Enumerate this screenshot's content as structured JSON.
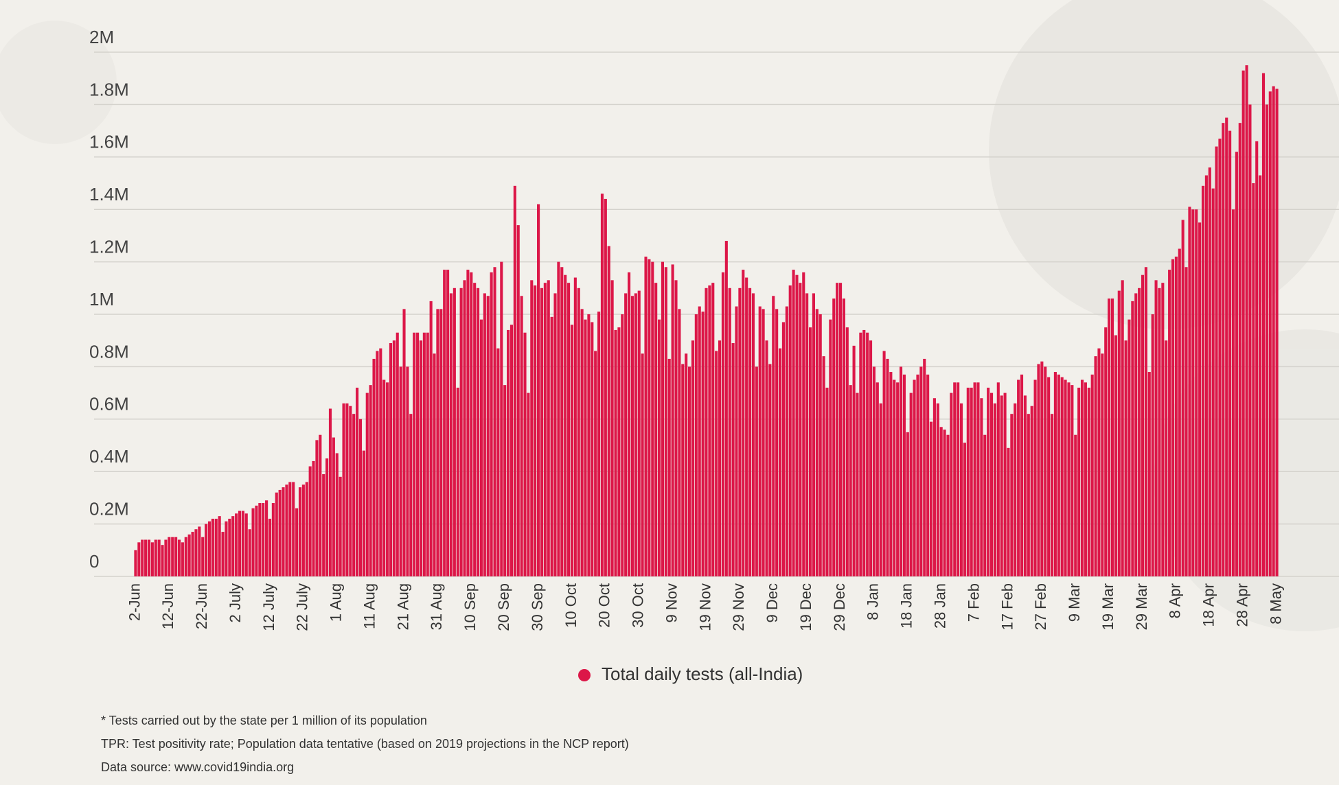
{
  "chart_data": {
    "type": "bar",
    "categories": [
      "2-Jun",
      null,
      null,
      null,
      null,
      null,
      null,
      null,
      null,
      null,
      "12-Jun",
      null,
      null,
      null,
      null,
      null,
      null,
      null,
      null,
      null,
      "22-Jun",
      null,
      null,
      null,
      null,
      null,
      null,
      null,
      null,
      null,
      "2 July",
      null,
      null,
      null,
      null,
      null,
      null,
      null,
      null,
      null,
      "12 July",
      null,
      null,
      null,
      null,
      null,
      null,
      null,
      null,
      null,
      "22 July",
      null,
      null,
      null,
      null,
      null,
      null,
      null,
      null,
      null,
      "1 Aug",
      null,
      null,
      null,
      null,
      null,
      null,
      null,
      null,
      null,
      "11 Aug",
      null,
      null,
      null,
      null,
      null,
      null,
      null,
      null,
      null,
      "21 Aug",
      null,
      null,
      null,
      null,
      null,
      null,
      null,
      null,
      null,
      "31 Aug",
      null,
      null,
      null,
      null,
      null,
      null,
      null,
      null,
      null,
      "10 Sep",
      null,
      null,
      null,
      null,
      null,
      null,
      null,
      null,
      null,
      "20 Sep",
      null,
      null,
      null,
      null,
      null,
      null,
      null,
      null,
      null,
      "30 Sep",
      null,
      null,
      null,
      null,
      null,
      null,
      null,
      null,
      null,
      "10 Oct",
      null,
      null,
      null,
      null,
      null,
      null,
      null,
      null,
      null,
      "20 Oct",
      null,
      null,
      null,
      null,
      null,
      null,
      null,
      null,
      null,
      "30 Oct",
      null,
      null,
      null,
      null,
      null,
      null,
      null,
      null,
      null,
      "9 Nov",
      null,
      null,
      null,
      null,
      null,
      null,
      null,
      null,
      null,
      "19 Nov",
      null,
      null,
      null,
      null,
      null,
      null,
      null,
      null,
      null,
      "29 Nov",
      null,
      null,
      null,
      null,
      null,
      null,
      null,
      null,
      null,
      "9 Dec",
      null,
      null,
      null,
      null,
      null,
      null,
      null,
      null,
      null,
      "19 Dec",
      null,
      null,
      null,
      null,
      null,
      null,
      null,
      null,
      null,
      "29 Dec",
      null,
      null,
      null,
      null,
      null,
      null,
      null,
      null,
      null,
      "8 Jan",
      null,
      null,
      null,
      null,
      null,
      null,
      null,
      null,
      null,
      "18 Jan",
      null,
      null,
      null,
      null,
      null,
      null,
      null,
      null,
      null,
      "28 Jan",
      null,
      null,
      null,
      null,
      null,
      null,
      null,
      null,
      null,
      "7 Feb",
      null,
      null,
      null,
      null,
      null,
      null,
      null,
      null,
      null,
      "17 Feb",
      null,
      null,
      null,
      null,
      null,
      null,
      null,
      null,
      null,
      "27 Feb",
      null,
      null,
      null,
      null,
      null,
      null,
      null,
      null,
      null,
      "9 Mar",
      null,
      null,
      null,
      null,
      null,
      null,
      null,
      null,
      null,
      "19 Mar",
      null,
      null,
      null,
      null,
      null,
      null,
      null,
      null,
      null,
      "29 Mar",
      null,
      null,
      null,
      null,
      null,
      null,
      null,
      null,
      null,
      "8 Apr",
      null,
      null,
      null,
      null,
      null,
      null,
      null,
      null,
      null,
      "18 Apr",
      null,
      null,
      null,
      null,
      null,
      null,
      null,
      null,
      null,
      "28 Apr",
      null,
      null,
      null,
      null,
      null,
      null,
      null,
      null,
      null,
      "8 May"
    ],
    "series": [
      {
        "name": "Total daily tests (all-India)",
        "color": "#dc1748",
        "values": [
          0.1,
          0.13,
          0.14,
          0.14,
          0.14,
          0.13,
          0.14,
          0.14,
          0.12,
          0.14,
          0.15,
          0.15,
          0.15,
          0.14,
          0.13,
          0.15,
          0.16,
          0.17,
          0.18,
          0.19,
          0.15,
          0.2,
          0.21,
          0.22,
          0.22,
          0.23,
          0.17,
          0.21,
          0.22,
          0.23,
          0.24,
          0.25,
          0.25,
          0.24,
          0.18,
          0.26,
          0.27,
          0.28,
          0.28,
          0.29,
          0.22,
          0.28,
          0.32,
          0.33,
          0.34,
          0.35,
          0.36,
          0.36,
          0.26,
          0.34,
          0.35,
          0.36,
          0.42,
          0.44,
          0.52,
          0.54,
          0.39,
          0.45,
          0.64,
          0.53,
          0.47,
          0.38,
          0.66,
          0.66,
          0.65,
          0.62,
          0.72,
          0.6,
          0.48,
          0.7,
          0.73,
          0.83,
          0.86,
          0.87,
          0.75,
          0.74,
          0.89,
          0.9,
          0.93,
          0.8,
          1.02,
          0.8,
          0.62,
          0.93,
          0.93,
          0.9,
          0.93,
          0.93,
          1.05,
          0.85,
          1.02,
          1.02,
          1.17,
          1.17,
          1.08,
          1.1,
          0.72,
          1.1,
          1.13,
          1.17,
          1.16,
          1.12,
          1.1,
          0.98,
          1.08,
          1.07,
          1.16,
          1.18,
          0.87,
          1.2,
          0.73,
          0.94,
          0.96,
          1.49,
          1.34,
          1.07,
          0.93,
          0.7,
          1.13,
          1.11,
          1.42,
          1.1,
          1.12,
          1.13,
          0.99,
          1.08,
          1.2,
          1.18,
          1.15,
          1.12,
          0.96,
          1.14,
          1.1,
          1.02,
          0.98,
          1.0,
          0.97,
          0.86,
          1.01,
          1.46,
          1.44,
          1.26,
          1.13,
          0.94,
          0.95,
          1.0,
          1.08,
          1.16,
          1.07,
          1.08,
          1.09,
          0.85,
          1.22,
          1.21,
          1.2,
          1.12,
          0.98,
          1.2,
          1.18,
          0.83,
          1.19,
          1.13,
          1.02,
          0.81,
          0.85,
          0.8,
          0.9,
          1.0,
          1.03,
          1.01,
          1.1,
          1.11,
          1.12,
          0.86,
          0.9,
          1.16,
          1.28,
          1.1,
          0.89,
          1.03,
          1.1,
          1.17,
          1.14,
          1.1,
          1.08,
          0.8,
          1.03,
          1.02,
          0.9,
          0.81,
          1.07,
          1.02,
          0.87,
          0.97,
          1.03,
          1.11,
          1.17,
          1.15,
          1.12,
          1.16,
          1.08,
          0.95,
          1.08,
          1.02,
          1.0,
          0.84,
          0.72,
          0.98,
          1.06,
          1.12,
          1.12,
          1.06,
          0.95,
          0.73,
          0.88,
          0.7,
          0.93,
          0.94,
          0.93,
          0.9,
          0.8,
          0.74,
          0.66,
          0.86,
          0.83,
          0.78,
          0.75,
          0.74,
          0.8,
          0.77,
          0.55,
          0.7,
          0.75,
          0.77,
          0.8,
          0.83,
          0.77,
          0.59,
          0.68,
          0.66,
          0.57,
          0.56,
          0.54,
          0.7,
          0.74,
          0.74,
          0.66,
          0.51,
          0.72,
          0.72,
          0.74,
          0.74,
          0.68,
          0.54,
          0.72,
          0.7,
          0.66,
          0.74,
          0.69,
          0.7,
          0.49,
          0.62,
          0.66,
          0.75,
          0.77,
          0.69,
          0.62,
          0.65,
          0.75,
          0.81,
          0.82,
          0.8,
          0.76,
          0.62,
          0.78,
          0.77,
          0.76,
          0.75,
          0.74,
          0.73,
          0.54,
          0.72,
          0.75,
          0.74,
          0.72,
          0.77,
          0.84,
          0.87,
          0.85,
          0.95,
          1.06,
          1.06,
          0.92,
          1.09,
          1.13,
          0.9,
          0.98,
          1.05,
          1.08,
          1.1,
          1.15,
          1.18,
          0.78,
          1.0,
          1.13,
          1.1,
          1.12,
          0.9,
          1.17,
          1.21,
          1.22,
          1.25,
          1.36,
          1.18,
          1.41,
          1.4,
          1.4,
          1.35,
          1.49,
          1.53,
          1.56,
          1.48,
          1.64,
          1.67,
          1.73,
          1.75,
          1.7,
          1.4,
          1.62,
          1.73,
          1.93,
          1.95,
          1.8,
          1.5,
          1.66,
          1.53,
          1.92,
          1.8,
          1.85,
          1.87,
          1.86
        ]
      }
    ],
    "ylim": [
      0,
      2
    ],
    "yticks": [
      0,
      {
        "value": 0.2,
        "label": "0.2M"
      },
      {
        "value": 0.4,
        "label": "0.4M"
      },
      {
        "value": 0.6,
        "label": "0.6M"
      },
      {
        "value": 0.8,
        "label": "0.8M"
      },
      {
        "value": 1,
        "label": "1M"
      },
      {
        "value": 1.2,
        "label": "1.2M"
      },
      {
        "value": 1.4,
        "label": "1.4M"
      },
      {
        "value": 1.6,
        "label": "1.6M"
      },
      {
        "value": 1.8,
        "label": "1.8M"
      },
      {
        "value": 2,
        "label": "2M"
      }
    ],
    "grid": true,
    "notes": [
      "* Tests carried out by the state per 1 million of its population",
      "TPR: Test positivity rate; Population data tentative (based on 2019 projections in the NCP report)",
      "Data source: www.covid19india.org"
    ]
  }
}
